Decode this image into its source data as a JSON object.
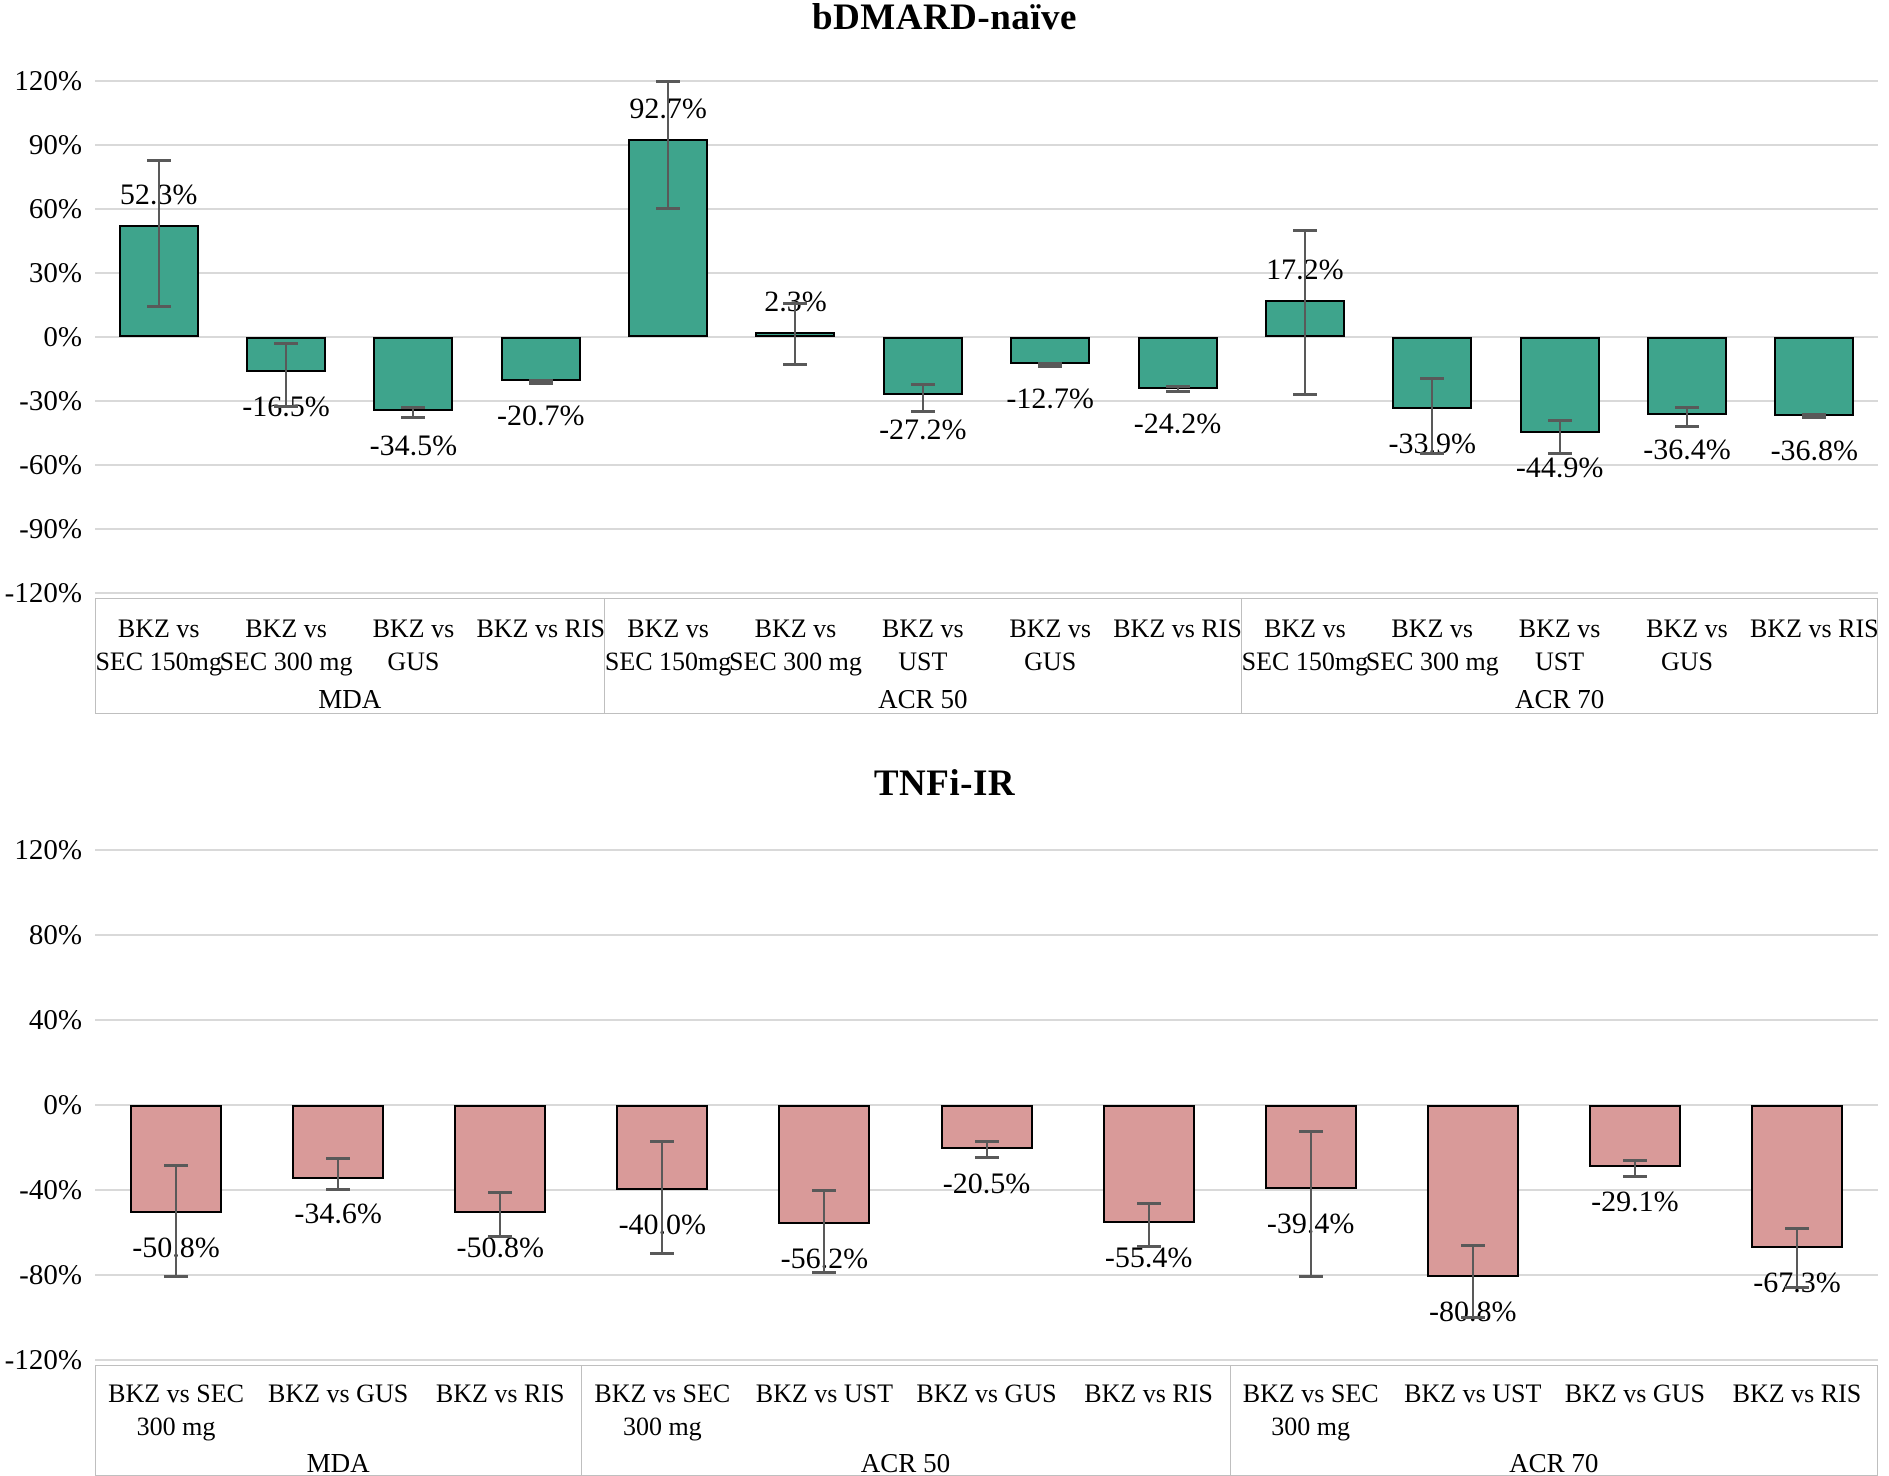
{
  "figure": {
    "background": "#ffffff",
    "gridline_color": "#d9d9d9",
    "box_border_color": "#bfbfbf",
    "error_bar_color": "#595959"
  },
  "chart_data": [
    {
      "type": "bar",
      "title": "bDMARD-naïve",
      "xlabel": "",
      "ylabel": "",
      "y_ticks": [
        "120%",
        "90%",
        "60%",
        "30%",
        "0%",
        "-30%",
        "-60%",
        "-90%",
        "-120%"
      ],
      "ylim": [
        -120,
        120
      ],
      "y_step": 30,
      "grid": true,
      "legend": "none",
      "bar_color": "#3ea48c",
      "bar_border_color": "#000000",
      "groups": [
        {
          "label": "MDA",
          "bars": [
            {
              "category": [
                "BKZ vs",
                "SEC 150mg"
              ],
              "value": 52.3,
              "label": "52.3%",
              "ci": [
                14,
                83
              ]
            },
            {
              "category": [
                "BKZ vs",
                "SEC 300 mg"
              ],
              "value": -16.5,
              "label": "-16.5%",
              "ci": [
                -33,
                -3
              ]
            },
            {
              "category": [
                "BKZ vs",
                "GUS"
              ],
              "value": -34.5,
              "label": "-34.5%",
              "ci": [
                -38,
                -33
              ]
            },
            {
              "category": [
                "BKZ vs RIS"
              ],
              "value": -20.7,
              "label": "-20.7%",
              "ci": [
                -22,
                -20
              ]
            }
          ]
        },
        {
          "label": "ACR 50",
          "bars": [
            {
              "category": [
                "BKZ vs",
                "SEC 150mg"
              ],
              "value": 92.7,
              "label": "92.7%",
              "ci": [
                60,
                120
              ]
            },
            {
              "category": [
                "BKZ vs",
                "SEC 300 mg"
              ],
              "value": 2.3,
              "label": "2.3%",
              "ci": [
                -13,
                16
              ]
            },
            {
              "category": [
                "BKZ vs",
                "UST"
              ],
              "value": -27.2,
              "label": "-27.2%",
              "ci": [
                -35,
                -22
              ]
            },
            {
              "category": [
                "BKZ vs",
                "GUS"
              ],
              "value": -12.7,
              "label": "-12.7%",
              "ci": [
                -14,
                -12
              ]
            },
            {
              "category": [
                "BKZ vs RIS"
              ],
              "value": -24.2,
              "label": "-24.2%",
              "ci": [
                -26,
                -23
              ]
            }
          ]
        },
        {
          "label": "ACR 70",
          "bars": [
            {
              "category": [
                "BKZ vs",
                "SEC 150mg"
              ],
              "value": 17.2,
              "label": "17.2%",
              "ci": [
                -27,
                50
              ]
            },
            {
              "category": [
                "BKZ vs",
                "SEC 300 mg"
              ],
              "value": -33.9,
              "label": "-33.9%",
              "ci": [
                -55,
                -19
              ]
            },
            {
              "category": [
                "BKZ vs",
                "UST"
              ],
              "value": -44.9,
              "label": "-44.9%",
              "ci": [
                -55,
                -39
              ]
            },
            {
              "category": [
                "BKZ vs",
                "GUS"
              ],
              "value": -36.4,
              "label": "-36.4%",
              "ci": [
                -42,
                -33
              ]
            },
            {
              "category": [
                "BKZ vs RIS"
              ],
              "value": -36.8,
              "label": "-36.8%",
              "ci": [
                -38,
                -36
              ]
            }
          ]
        }
      ]
    },
    {
      "type": "bar",
      "title": "TNFi-IR",
      "xlabel": "",
      "ylabel": "",
      "y_ticks": [
        "120%",
        "80%",
        "40%",
        "0%",
        "-40%",
        "-80%",
        "-120%"
      ],
      "ylim": [
        -120,
        120
      ],
      "y_step": 40,
      "grid": true,
      "legend": "none",
      "bar_color": "#d99a99",
      "bar_border_color": "#000000",
      "groups": [
        {
          "label": "MDA",
          "bars": [
            {
              "category": [
                "BKZ vs SEC",
                "300 mg"
              ],
              "value": -50.8,
              "label": "-50.8%",
              "ci": [
                -81,
                -28
              ]
            },
            {
              "category": [
                "BKZ vs GUS"
              ],
              "value": -34.6,
              "label": "-34.6%",
              "ci": [
                -40,
                -25
              ]
            },
            {
              "category": [
                "BKZ vs RIS"
              ],
              "value": -50.8,
              "label": "-50.8%",
              "ci": [
                -62,
                -41
              ]
            }
          ]
        },
        {
          "label": "ACR 50",
          "bars": [
            {
              "category": [
                "BKZ vs SEC",
                "300 mg"
              ],
              "value": -40.0,
              "label": "-40.0%",
              "ci": [
                -70,
                -17
              ]
            },
            {
              "category": [
                "BKZ vs UST"
              ],
              "value": -56.2,
              "label": "-56.2%",
              "ci": [
                -79,
                -40
              ]
            },
            {
              "category": [
                "BKZ vs GUS"
              ],
              "value": -20.5,
              "label": "-20.5%",
              "ci": [
                -25,
                -17
              ]
            },
            {
              "category": [
                "BKZ vs RIS"
              ],
              "value": -55.4,
              "label": "-55.4%",
              "ci": [
                -67,
                -46
              ]
            }
          ]
        },
        {
          "label": "ACR 70",
          "bars": [
            {
              "category": [
                "BKZ vs SEC",
                "300 mg"
              ],
              "value": -39.4,
              "label": "-39.4%",
              "ci": [
                -81,
                -12
              ]
            },
            {
              "category": [
                "BKZ vs UST"
              ],
              "value": -80.8,
              "label": "-80.8%",
              "ci": [
                -100,
                -66
              ]
            },
            {
              "category": [
                "BKZ vs GUS"
              ],
              "value": -29.1,
              "label": "-29.1%",
              "ci": [
                -34,
                -26
              ]
            },
            {
              "category": [
                "BKZ vs RIS"
              ],
              "value": -67.3,
              "label": "-67.3%",
              "ci": [
                -86,
                -58
              ]
            }
          ]
        }
      ]
    }
  ]
}
